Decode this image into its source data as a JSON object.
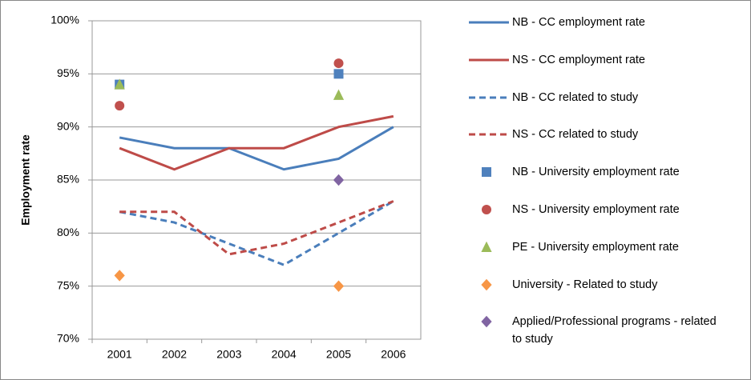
{
  "chart_data": {
    "type": "line",
    "ylabel": "Employment rate",
    "categories": [
      "2001",
      "2002",
      "2003",
      "2004",
      "2005",
      "2006"
    ],
    "ylim": [
      70,
      100
    ],
    "yticks": [
      {
        "value": 70,
        "label": "70%"
      },
      {
        "value": 75,
        "label": "75%"
      },
      {
        "value": 80,
        "label": "80%"
      },
      {
        "value": 85,
        "label": "85%"
      },
      {
        "value": 90,
        "label": "90%"
      },
      {
        "value": 95,
        "label": "95%"
      },
      {
        "value": 100,
        "label": "100%"
      }
    ],
    "grid": true,
    "legend": "right",
    "series": [
      {
        "name": "NB - CC employment rate",
        "color": "#4a7ebb",
        "values": [
          89,
          88,
          88,
          86,
          87,
          90
        ]
      },
      {
        "name": "NS - CC employment rate",
        "color": "#be4b48",
        "values": [
          88,
          86,
          88,
          88,
          90,
          91
        ]
      },
      {
        "name": "NB - CC related to study",
        "color": "#4a7ebb",
        "dashed": true,
        "values": [
          82,
          81,
          79,
          77,
          80,
          83
        ]
      },
      {
        "name": "NS - CC related to study",
        "color": "#be4b48",
        "dashed": true,
        "values": [
          82,
          82,
          78,
          79,
          81,
          83
        ]
      },
      {
        "name": "NB - University employment rate",
        "color": "#4f81bd",
        "marker": "square",
        "values": [
          94,
          null,
          null,
          null,
          95,
          null
        ]
      },
      {
        "name": "NS - University employment rate",
        "color": "#c0504d",
        "marker": "circle",
        "values": [
          92,
          null,
          null,
          null,
          96,
          null
        ]
      },
      {
        "name": "PE - University employment rate",
        "color": "#9bbb59",
        "marker": "triangle",
        "values": [
          94,
          null,
          null,
          null,
          93,
          null
        ]
      },
      {
        "name": "University - Related to study",
        "color": "#f79646",
        "marker": "diamond",
        "values": [
          76,
          null,
          null,
          null,
          75,
          null
        ]
      },
      {
        "name": "Applied/Professional programs - related to study",
        "color": "#8064a2",
        "marker": "diamond",
        "values": [
          null,
          null,
          null,
          null,
          85,
          null
        ]
      }
    ]
  }
}
